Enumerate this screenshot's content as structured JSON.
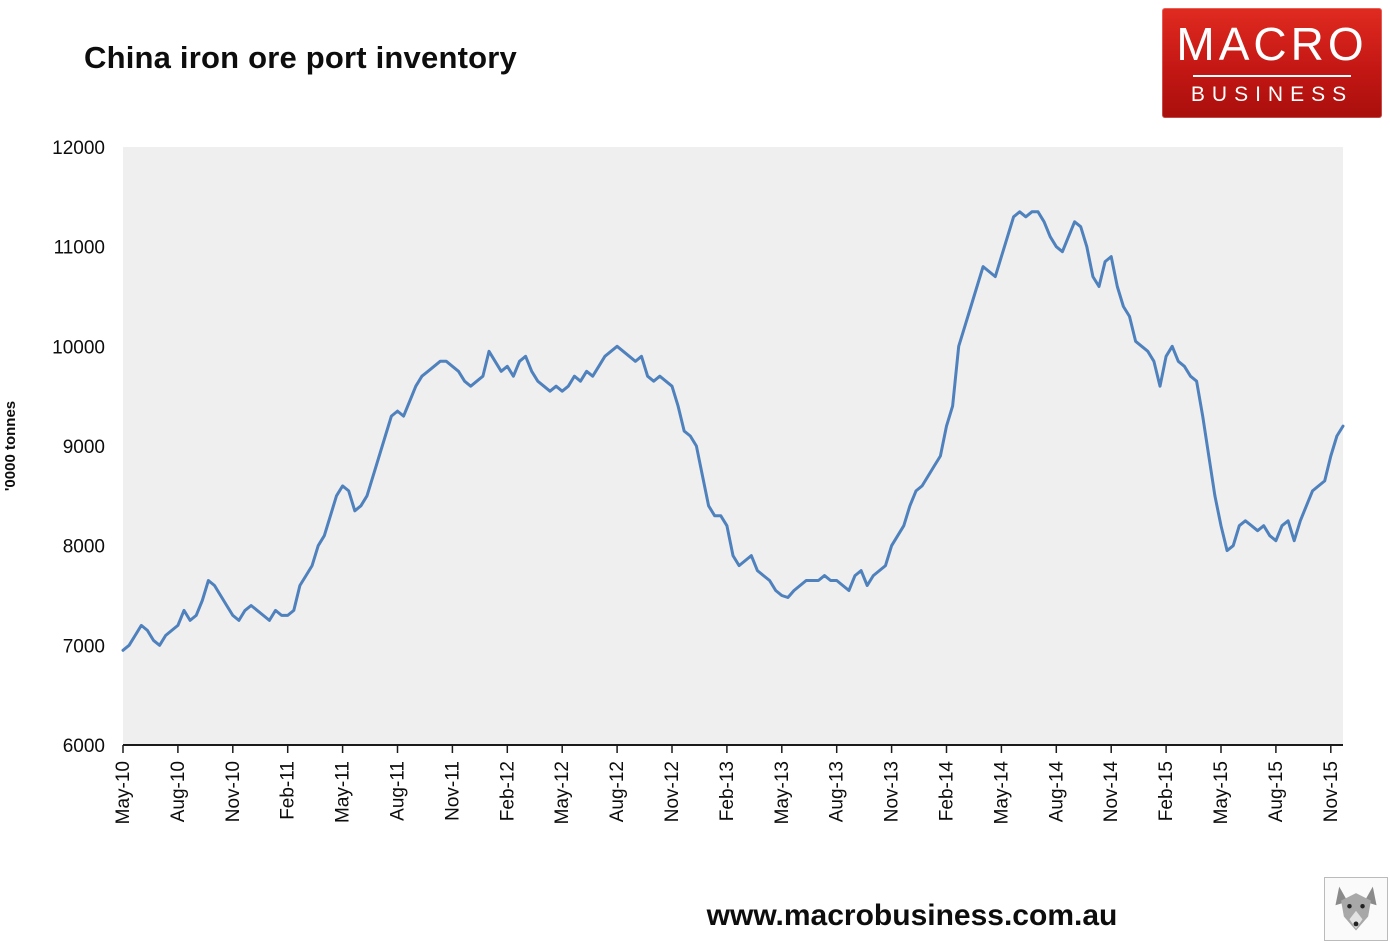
{
  "header": {
    "title": "China iron ore port inventory",
    "logo": {
      "line1": "MACRO",
      "line2": "BUSINESS",
      "bg": "#c41714",
      "text_color": "#ffffff"
    }
  },
  "footer": {
    "url": "www.macrobusiness.com.au"
  },
  "chart_data": {
    "type": "line",
    "title": "China iron ore port inventory",
    "xlabel": "",
    "ylabel": "'0000 tonnes",
    "ylim": [
      6000,
      12000
    ],
    "yticks": [
      6000,
      7000,
      8000,
      9000,
      10000,
      11000,
      12000
    ],
    "grid": false,
    "legend": "none",
    "plot_bg": "#efefef",
    "axis_color": "#1a1a1a",
    "categories": [
      "May-10",
      "Aug-10",
      "Nov-10",
      "Feb-11",
      "May-11",
      "Aug-11",
      "Nov-11",
      "Feb-12",
      "May-12",
      "Aug-12",
      "Nov-12",
      "Feb-13",
      "May-13",
      "Aug-13",
      "Nov-13",
      "Feb-14",
      "May-14",
      "Aug-14",
      "Nov-14",
      "Feb-15",
      "May-15",
      "Aug-15",
      "Nov-15"
    ],
    "points_per_label_interval": 9,
    "series": [
      {
        "name": "China iron ore port inventory ('0000 tonnes, approx. weekly)",
        "color": "#4f81bd",
        "values": [
          6950,
          7000,
          7100,
          7200,
          7150,
          7050,
          7000,
          7100,
          7150,
          7200,
          7350,
          7250,
          7300,
          7450,
          7650,
          7600,
          7500,
          7400,
          7300,
          7250,
          7350,
          7400,
          7350,
          7300,
          7250,
          7350,
          7300,
          7300,
          7350,
          7600,
          7700,
          7800,
          8000,
          8100,
          8300,
          8500,
          8600,
          8550,
          8350,
          8400,
          8500,
          8700,
          8900,
          9100,
          9300,
          9350,
          9300,
          9450,
          9600,
          9700,
          9750,
          9800,
          9850,
          9850,
          9800,
          9750,
          9650,
          9600,
          9650,
          9700,
          9950,
          9850,
          9750,
          9800,
          9700,
          9850,
          9900,
          9750,
          9650,
          9600,
          9550,
          9600,
          9550,
          9600,
          9700,
          9650,
          9750,
          9700,
          9800,
          9900,
          9950,
          10000,
          9950,
          9900,
          9850,
          9900,
          9700,
          9650,
          9700,
          9650,
          9600,
          9400,
          9150,
          9100,
          9000,
          8700,
          8400,
          8300,
          8300,
          8200,
          7900,
          7800,
          7850,
          7900,
          7750,
          7700,
          7650,
          7550,
          7500,
          7480,
          7550,
          7600,
          7650,
          7650,
          7650,
          7700,
          7650,
          7650,
          7600,
          7550,
          7700,
          7750,
          7600,
          7700,
          7750,
          7800,
          8000,
          8100,
          8200,
          8400,
          8550,
          8600,
          8700,
          8800,
          8900,
          9200,
          9400,
          10000,
          10200,
          10400,
          10600,
          10800,
          10750,
          10700,
          10900,
          11100,
          11300,
          11350,
          11300,
          11350,
          11350,
          11250,
          11100,
          11000,
          10950,
          11100,
          11250,
          11200,
          11000,
          10700,
          10600,
          10850,
          10900,
          10600,
          10400,
          10300,
          10050,
          10000,
          9950,
          9850,
          9600,
          9900,
          10000,
          9850,
          9800,
          9700,
          9650,
          9300,
          8900,
          8500,
          8200,
          7950,
          8000,
          8200,
          8250,
          8200,
          8150,
          8200,
          8100,
          8050,
          8200,
          8250,
          8050,
          8250,
          8400,
          8550,
          8600,
          8650,
          8900,
          9100,
          9200
        ]
      }
    ]
  }
}
